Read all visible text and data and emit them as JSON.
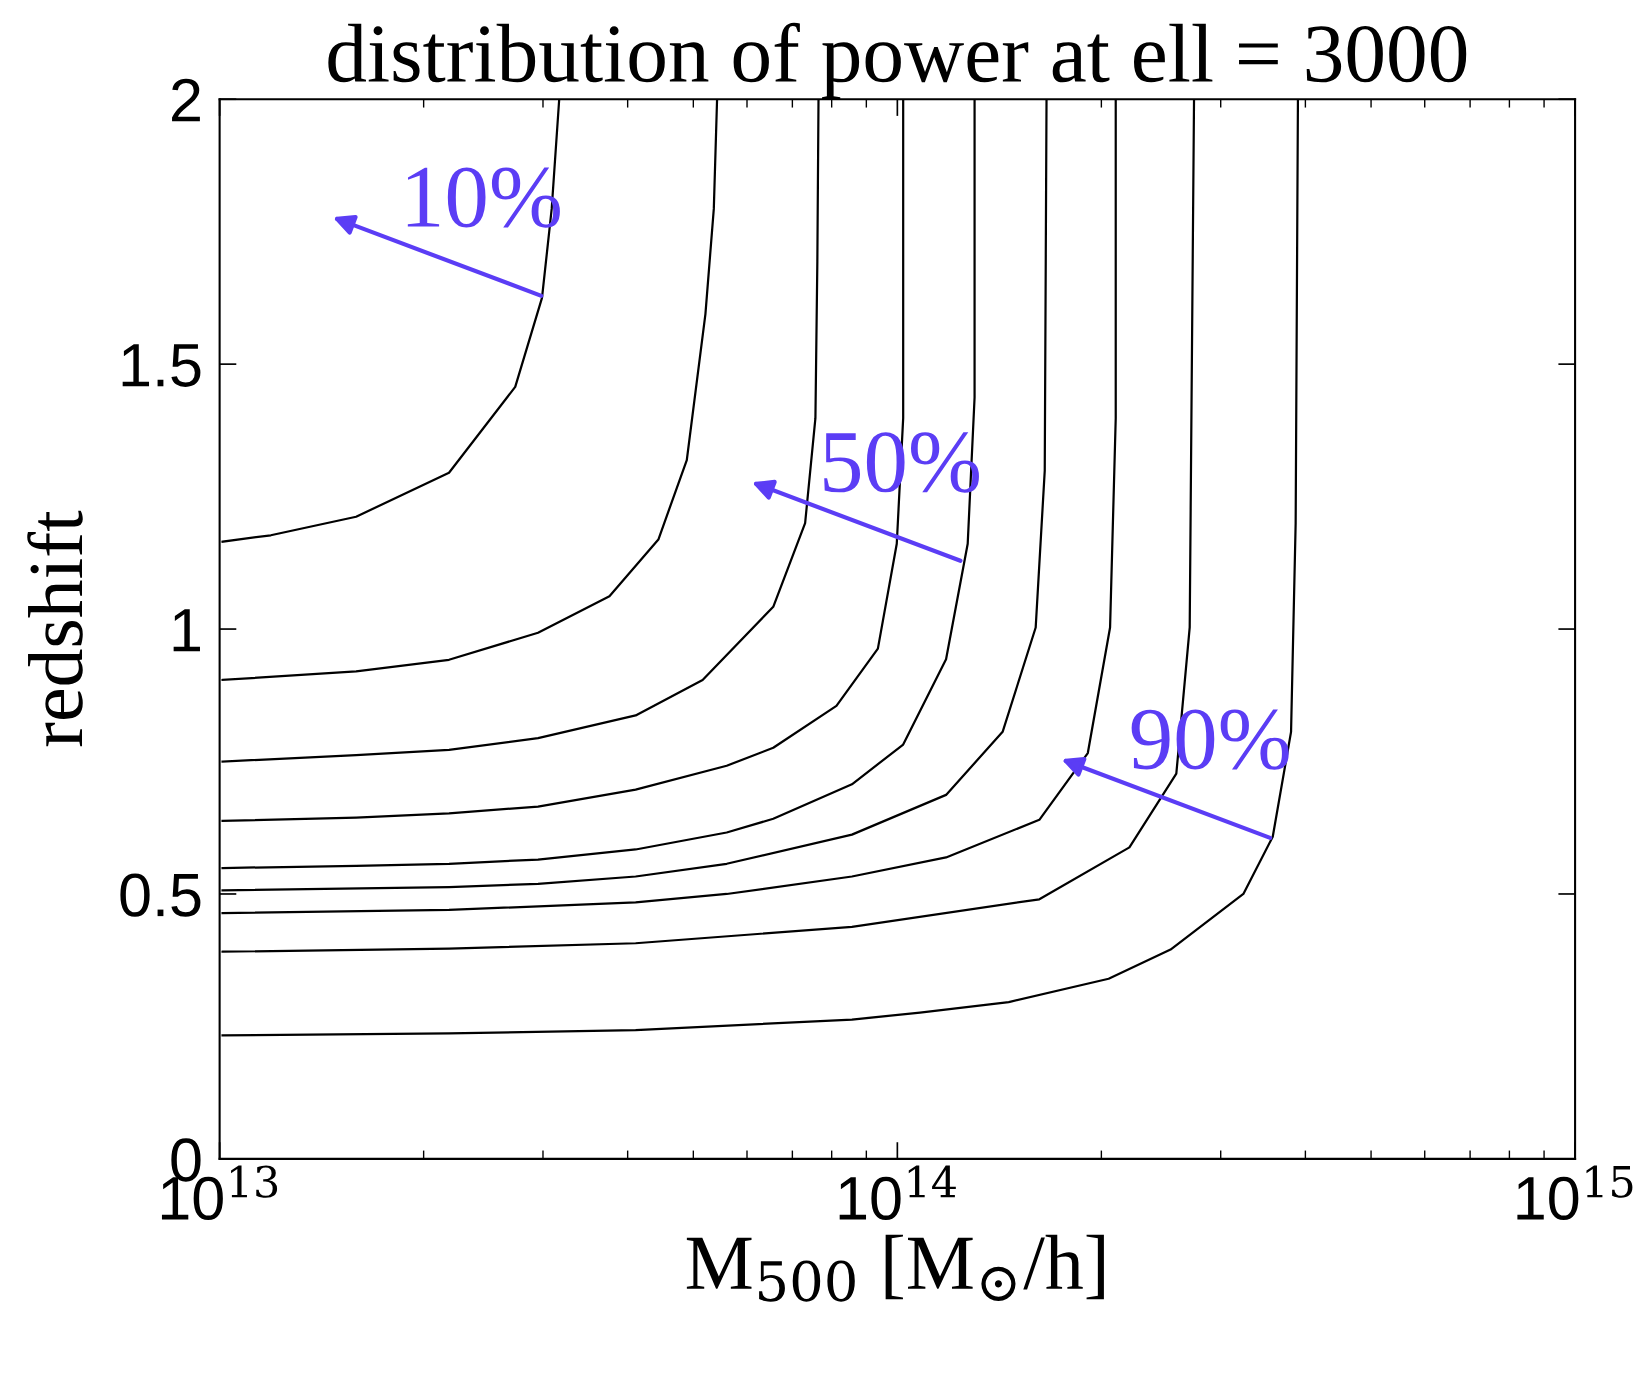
{
  "chart_data": {
    "type": "line",
    "title": "distribution of power at ell = 3000",
    "xlabel": "M$_{500}$ [M$_{⊙}$/h]",
    "ylabel": "redshift",
    "log": "x",
    "xlim": [
      10000000000000.0,
      1000000000000000.0
    ],
    "ylim": [
      0,
      2
    ],
    "xticks": [
      {
        "value": 10000000000000.0,
        "label": "10$^{13}$"
      },
      {
        "value": 100000000000000.0,
        "label": "10$^{14}$"
      },
      {
        "value": 1000000000000000.0,
        "label": "10$^{15}$"
      }
    ],
    "yticks": [
      0,
      {
        "value": 0.5,
        "label": "0.5"
      },
      1,
      {
        "value": 1.5,
        "label": "1.5"
      },
      2
    ],
    "grid": false,
    "marker": "none",
    "line_style": "solid",
    "series": [
      {
        "color": "#000000",
        "x": [
          10100000000000.0,
          11900000000000.0,
          15900000000000.0,
          21800000000000.0,
          27300000000000.0,
          29900000000000.0,
          30900000000000.0,
          31700000000000.0
        ],
        "values": [
          1.165,
          1.177,
          1.212,
          1.295,
          1.457,
          1.625,
          1.793,
          2.0
        ]
      },
      {
        "color": "#000000",
        "x": [
          10100000000000.0,
          15900000000000.0,
          21800000000000.0,
          29500000000000.0,
          37600000000000.0,
          44400000000000.0,
          48900000000000.0,
          52100000000000.0,
          53600000000000.0,
          54200000000000.0
        ],
        "values": [
          0.904,
          0.92,
          0.942,
          0.993,
          1.062,
          1.169,
          1.319,
          1.595,
          1.793,
          2.0
        ]
      },
      {
        "color": "#000000",
        "x": [
          10100000000000.0,
          15900000000000.0,
          21800000000000.0,
          29500000000000.0,
          41100000000000.0,
          51600000000000.0,
          65600000000000.0,
          73100000000000.0,
          75700000000000.0,
          76200000000000.0,
          76500000000000.0
        ],
        "values": [
          0.75,
          0.762,
          0.772,
          0.794,
          0.837,
          0.904,
          1.042,
          1.2,
          1.398,
          1.694,
          2.0
        ]
      },
      {
        "color": "#000000",
        "x": [
          10100000000000.0,
          15900000000000.0,
          21800000000000.0,
          29500000000000.0,
          41100000000000.0,
          56000000000000.0,
          65600000000000.0,
          81300000000000.0,
          93600000000000.0,
          99800000000000.0,
          102000000000000.0,
          102000000000000.0
        ],
        "values": [
          0.638,
          0.644,
          0.652,
          0.665,
          0.697,
          0.742,
          0.776,
          0.855,
          0.963,
          1.161,
          1.398,
          2.0
        ]
      },
      {
        "color": "#000000",
        "x": [
          10100000000000.0,
          15900000000000.0,
          21800000000000.0,
          29500000000000.0,
          41100000000000.0,
          56000000000000.0,
          65600000000000.0,
          85700000000000.0,
          102000000000000.0,
          118000000000000.0,
          127000000000000.0,
          130000000000000.0,
          130000000000000.0
        ],
        "values": [
          0.549,
          0.553,
          0.557,
          0.565,
          0.584,
          0.616,
          0.642,
          0.707,
          0.782,
          0.943,
          1.161,
          1.437,
          2.0
        ]
      },
      {
        "color": "#000000",
        "x": [
          10100000000000.0,
          21800000000000.0,
          29500000000000.0,
          41100000000000.0,
          56000000000000.0,
          85700000000000.0,
          118000000000000.0,
          143000000000000.0,
          160000000000000.0,
          165000000000000.0,
          166000000000000.0
        ],
        "values": [
          0.507,
          0.513,
          0.519,
          0.533,
          0.557,
          0.612,
          0.687,
          0.806,
          1.003,
          1.299,
          2.0
        ]
      },
      {
        "color": "#000000",
        "x": [
          10100000000000.0,
          21800000000000.0,
          41100000000000.0,
          56000000000000.0,
          85700000000000.0,
          118000000000000.0,
          162000000000000.0,
          191000000000000.0,
          206000000000000.0,
          210000000000000.0,
          210000000000000.0
        ],
        "values": [
          0.464,
          0.47,
          0.484,
          0.5,
          0.533,
          0.569,
          0.64,
          0.766,
          1.003,
          1.398,
          2.0
        ]
      },
      {
        "color": "#000000",
        "x": [
          10100000000000.0,
          21800000000000.0,
          41100000000000.0,
          85700000000000.0,
          162000000000000.0,
          220000000000000.0,
          258000000000000.0,
          270000000000000.0,
          274000000000000.0
        ],
        "values": [
          0.391,
          0.397,
          0.407,
          0.438,
          0.49,
          0.588,
          0.727,
          1.003,
          2.0
        ]
      },
      {
        "color": "#000000",
        "x": [
          10100000000000.0,
          21800000000000.0,
          41100000000000.0,
          85700000000000.0,
          108000000000000.0,
          146000000000000.0,
          205000000000000.0,
          253000000000000.0,
          324000000000000.0,
          358000000000000.0,
          381000000000000.0,
          387000000000000.0,
          390000000000000.0
        ],
        "values": [
          0.233,
          0.237,
          0.243,
          0.263,
          0.276,
          0.296,
          0.34,
          0.395,
          0.5,
          0.608,
          0.806,
          1.2,
          2.0
        ]
      }
    ],
    "annotations": [
      {
        "text": "10%",
        "x": 30100000000000.0,
        "y": 1.627
      },
      {
        "text": "50%",
        "x": 125000000000000.0,
        "y": 1.127
      },
      {
        "text": "90%",
        "x": 358000000000000.0,
        "y": 0.604
      }
    ]
  }
}
